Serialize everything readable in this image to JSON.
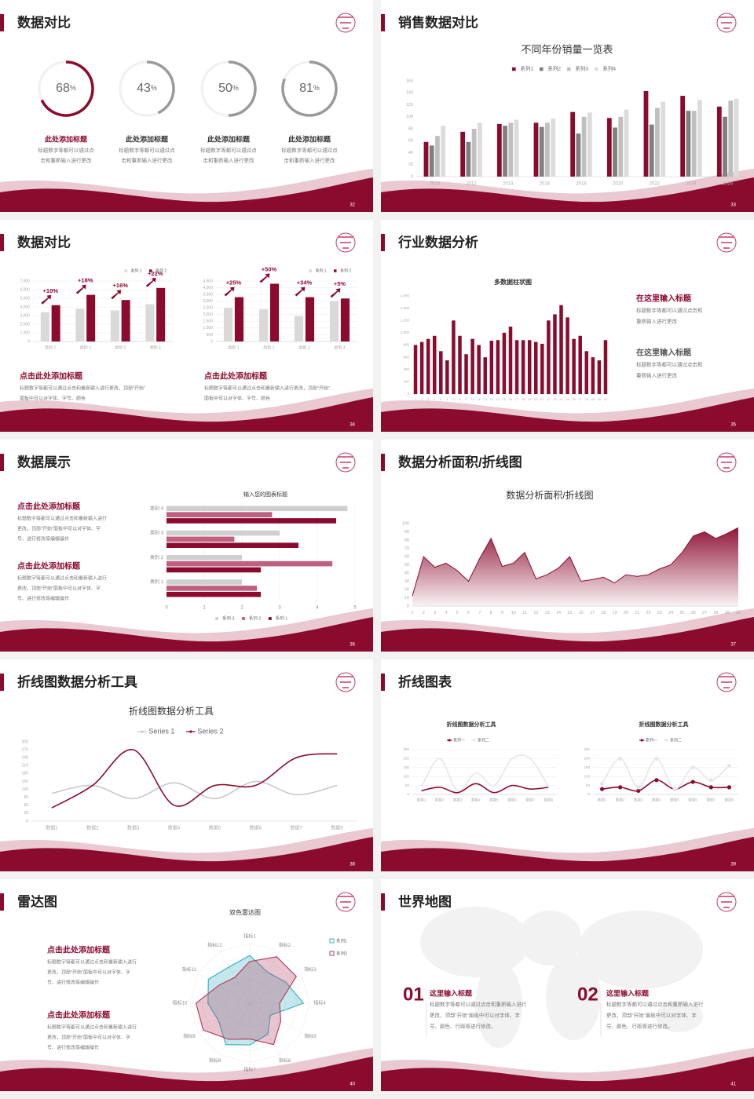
{
  "slides": [
    {
      "title": "数据对比",
      "page": 32,
      "charts": [
        {
          "type": "ring",
          "unit": "%",
          "values": [
            68,
            43,
            50,
            81
          ],
          "colors": [
            "#8b0b2e",
            "#9a9a9a",
            "#9a9a9a",
            "#9a9a9a"
          ]
        }
      ],
      "blocks": [
        {
          "heading": "此处添加标题",
          "lines": [
            "标题数字等都可以通过点",
            "击和重新输入进行更改"
          ]
        },
        {
          "heading": "此处添加标题",
          "lines": [
            "标题数字等都可以通过点",
            "击和重新输入进行更改"
          ]
        },
        {
          "heading": "此处添加标题",
          "lines": [
            "标题数字等都可以通过点",
            "击和重新输入进行更改"
          ]
        },
        {
          "heading": "此处添加标题",
          "lines": [
            "标题数字等都可以通过点",
            "击和重新输入进行更改"
          ]
        }
      ]
    },
    {
      "title": "销售数据对比",
      "page": 33,
      "charts": [
        {
          "type": "bar",
          "title": "不同年份销量一览表",
          "grid": false,
          "categories": [
            "2010",
            "2012",
            "2014",
            "2016",
            "2018",
            "2020",
            "2022",
            "2024",
            "2026"
          ],
          "series": [
            {
              "name": "系列1",
              "color": "#8b0b2e",
              "values": [
                58,
                75,
                88,
                90,
                108,
                98,
                143,
                135,
                117
              ]
            },
            {
              "name": "系列2",
              "color": "#7f7f7f",
              "values": [
                52,
                58,
                85,
                83,
                72,
                82,
                87,
                110,
                100
              ]
            },
            {
              "name": "系列3",
              "color": "#bfbfbf",
              "values": [
                68,
                80,
                90,
                90,
                100,
                100,
                115,
                110,
                127
              ]
            },
            {
              "name": "系列4",
              "color": "#dcdcdc",
              "values": [
                85,
                90,
                95,
                97,
                107,
                112,
                125,
                128,
                130
              ]
            }
          ],
          "ylim": [
            0,
            160
          ],
          "yticks": [
            0,
            20,
            40,
            60,
            80,
            100,
            120,
            140,
            160
          ]
        }
      ]
    },
    {
      "title": "数据对比",
      "page": 34,
      "charts": [
        {
          "type": "bar",
          "grid": true,
          "categories": [
            "类别 1",
            "类别 2",
            "类别 3",
            "类别 4"
          ],
          "series": [
            {
              "name": "系列 1",
              "color": "#d9d9d9",
              "values": [
                3400,
                3800,
                3600,
                4300
              ]
            },
            {
              "name": "系列 2",
              "color": "#8b0b2e",
              "values": [
                4200,
                5400,
                4800,
                6200
              ]
            }
          ],
          "annotations": [
            "+10%",
            "+18%",
            "+16%",
            "+22%"
          ],
          "ylim": [
            0,
            7000
          ],
          "yticks": [
            0,
            {
              "value": 1000,
              "label": "1,000"
            },
            {
              "value": 2000,
              "label": "2,000"
            },
            {
              "value": 3000,
              "label": "3,000"
            },
            {
              "value": 4000,
              "label": "4,000"
            },
            {
              "value": 5000,
              "label": "5,000"
            },
            {
              "value": 6000,
              "label": "6,000"
            },
            {
              "value": 7000,
              "label": "7,000"
            }
          ]
        },
        {
          "type": "bar",
          "grid": true,
          "categories": [
            "类别 1",
            "类别 2",
            "类别 3",
            "类别 4"
          ],
          "series": [
            {
              "name": "系列 1",
              "color": "#d9d9d9",
              "values": [
                2500,
                2400,
                1900,
                3000
              ]
            },
            {
              "name": "系列 2",
              "color": "#8b0b2e",
              "values": [
                3300,
                4300,
                3300,
                3200
              ]
            }
          ],
          "annotations": [
            "+25%",
            "+50%",
            "+34%",
            "+5%"
          ],
          "ylim": [
            0,
            4500
          ],
          "yticks": [
            0,
            500,
            {
              "value": 1000,
              "label": "1,000"
            },
            {
              "value": 1500,
              "label": "1,500"
            },
            {
              "value": 2000,
              "label": "2,000"
            },
            {
              "value": 2500,
              "label": "2,500"
            },
            {
              "value": 3000,
              "label": "3,000"
            },
            {
              "value": 3500,
              "label": "3,500"
            },
            {
              "value": 4000,
              "label": "4,000"
            },
            {
              "value": 4500,
              "label": "4,500"
            }
          ]
        }
      ],
      "blocks": [
        {
          "heading": "点击此处添加标题",
          "lines": [
            "标题数字等都可以通过点击和重新输入进行更改，顶部“开始”",
            "面板中可以对字体、字号、颜色"
          ]
        },
        {
          "heading": "点击此处添加标题",
          "lines": [
            "标题数字等都可以通过点击和重新输入进行更改，顶部“开始”",
            "面板中可以对字体、字号、颜色"
          ]
        }
      ]
    },
    {
      "title": "行业数据分析",
      "page": 35,
      "charts": [
        {
          "type": "bar",
          "title": "多数据柱状图",
          "grid": false,
          "color": "#8b0b2e",
          "categories": [
            "1",
            "2",
            "3",
            "4",
            "5",
            "6",
            "7",
            "8",
            "9",
            "10",
            "11",
            "12",
            "13",
            "14",
            "15",
            "16",
            "17",
            "18",
            "19",
            "20",
            "21",
            "22",
            "23",
            "24",
            "25",
            "26",
            "27",
            "28",
            "29",
            "30",
            "31"
          ],
          "values": [
            800,
            850,
            900,
            950,
            700,
            550,
            1200,
            950,
            650,
            900,
            800,
            600,
            870,
            880,
            1000,
            1100,
            880,
            880,
            880,
            850,
            820,
            1200,
            1300,
            1450,
            1250,
            900,
            950,
            700,
            600,
            550,
            880
          ],
          "ylim": [
            0,
            1600
          ],
          "yticks": [
            0,
            200,
            400,
            600,
            800,
            {
              "value": 1000,
              "label": "1,000"
            },
            {
              "value": 1200,
              "label": "1,200"
            },
            {
              "value": 1400,
              "label": "1,400"
            },
            {
              "value": 1600,
              "label": "1,600"
            }
          ]
        }
      ],
      "blocks": [
        {
          "heading": "在这里输入标题",
          "lines": [
            "标题数字等都可以通过点击和",
            "重新输入进行更改"
          ]
        },
        {
          "heading": "在这里输入标题",
          "lines": [
            "标题数字等都可以通过点击和",
            "重新输入进行更改"
          ]
        }
      ]
    },
    {
      "title": "数据展示",
      "page": 36,
      "charts": [
        {
          "type": "hbar",
          "title": "输入您的图表标题",
          "grid": true,
          "categories": [
            "类别 1",
            "类别 2",
            "类别 3",
            "类别 4"
          ],
          "series": [
            {
              "name": "系列 1",
              "color": "#8b0b2e",
              "values": [
                2.5,
                2.5,
                3.5,
                4.5
              ]
            },
            {
              "name": "系列 2",
              "color": "#c06080",
              "values": [
                2.4,
                4.4,
                1.8,
                2.8
              ]
            },
            {
              "name": "系列 3",
              "color": "#cfcfcf",
              "values": [
                2.0,
                2.0,
                3.0,
                4.8
              ]
            }
          ],
          "xlim": [
            0,
            5
          ],
          "xticks": [
            0,
            1,
            2,
            3,
            4,
            5
          ]
        }
      ],
      "blocks": [
        {
          "heading": "点击此处添加标题",
          "lines": [
            "标题数字等都可以通过点击和重新输入进行",
            "更改，顶部“开始”面板中可以对字体、字",
            "号、进行修改等编辑操作"
          ]
        },
        {
          "heading": "点击此处添加标题",
          "lines": [
            "标题数字等都可以通过点击和重新输入进行",
            "更改，顶部“开始”面板中可以对字体、字",
            "号、进行修改等编辑操作"
          ]
        }
      ]
    },
    {
      "title": "数据分析面积/折线图",
      "page": 37,
      "charts": [
        {
          "type": "area",
          "title": "数据分析面积/折线图",
          "grid": false,
          "color": "#8b0b2e",
          "categories": [
            "1",
            "2",
            "3",
            "4",
            "5",
            "6",
            "7",
            "8",
            "9",
            "10",
            "11",
            "12",
            "13",
            "14",
            "15",
            "16",
            "17",
            "18",
            "19",
            "20",
            "21",
            "22",
            "23",
            "24",
            "25",
            "26",
            "27",
            "28",
            "29",
            "30"
          ],
          "values": [
            12,
            60,
            47,
            52,
            43,
            30,
            58,
            82,
            48,
            52,
            65,
            33,
            38,
            46,
            60,
            30,
            32,
            35,
            28,
            38,
            36,
            38,
            45,
            50,
            65,
            85,
            90,
            82,
            88,
            95
          ],
          "ylim": [
            0,
            100
          ],
          "yticks": [
            0,
            10,
            20,
            30,
            40,
            50,
            60,
            70,
            80,
            90,
            100
          ]
        }
      ]
    },
    {
      "title": "折线图数据分析工具",
      "page": 38,
      "charts": [
        {
          "type": "line",
          "title": "折线图数据分析工具",
          "grid": false,
          "smooth": true,
          "categories": [
            "数据1",
            "数据2",
            "数据3",
            "数据4",
            "数据5",
            "数据6",
            "数据7",
            "数据8"
          ],
          "series": [
            {
              "name": "Series 1",
              "color": "#c8c8c8",
              "values": [
                105,
                135,
                85,
                145,
                85,
                150,
                100,
                135
              ]
            },
            {
              "name": "Series 2",
              "color": "#8b0b2e",
              "values": [
                50,
                135,
                270,
                60,
                135,
                135,
                240,
                255
              ]
            }
          ],
          "ylim": [
            0,
            300
          ],
          "yticks": [
            0,
            30,
            60,
            90,
            120,
            150,
            180,
            210,
            240,
            270,
            300
          ]
        }
      ]
    },
    {
      "title": "折线图表",
      "page": 39,
      "charts": [
        {
          "type": "line",
          "title": "折线图数据分析工具",
          "grid": true,
          "smooth": true,
          "categories": [
            "数据1",
            "数据2",
            "数据3",
            "数据4",
            "数据5",
            "数据6",
            "数据7",
            "数据8"
          ],
          "series": [
            {
              "name": "系列一",
              "color": "#8b0b2e",
              "values": [
                20,
                40,
                10,
                60,
                10,
                50,
                30,
                40
              ]
            },
            {
              "name": "系列二",
              "color": "#e6e6e6",
              "values": [
                40,
                200,
                20,
                120,
                50,
                200,
                200,
                40
              ]
            }
          ],
          "ylim": [
            0,
            250
          ],
          "yticks": [
            0,
            50,
            100,
            150,
            200,
            250
          ]
        },
        {
          "type": "line",
          "title": "折线图数据分析工具",
          "grid": true,
          "smooth": true,
          "markers": true,
          "categories": [
            "数据1",
            "数据2",
            "数据3",
            "数据4",
            "数据5",
            "数据6",
            "数据7",
            "数据8"
          ],
          "series": [
            {
              "name": "系列一",
              "color": "#8b0b2e",
              "values": [
                30,
                40,
                20,
                80,
                30,
                70,
                40,
                40
              ]
            },
            {
              "name": "系列二",
              "color": "#e6e6e6",
              "values": [
                60,
                200,
                40,
                200,
                30,
                150,
                80,
                160
              ]
            }
          ],
          "ylim": [
            0,
            250
          ],
          "yticks": [
            0,
            50,
            100,
            150,
            200,
            250
          ]
        }
      ]
    },
    {
      "title": "雷达图",
      "page": 40,
      "charts": [
        {
          "type": "radar",
          "title": "双色雷达图",
          "max": 100,
          "categories": [
            "指标1",
            "指标2",
            "指标3",
            "指标4",
            "指标5",
            "指标6",
            "指标7",
            "指标8",
            "指标9",
            "指标10",
            "指标11",
            "指标12"
          ],
          "series": [
            {
              "name": "系列1",
              "color": "#3bb3c3",
              "values": [
                80,
                60,
                70,
                90,
                40,
                60,
                70,
                80,
                60,
                70,
                80,
                70
              ]
            },
            {
              "name": "系列2",
              "color": "#b3405f",
              "values": [
                70,
                90,
                90,
                50,
                60,
                80,
                60,
                70,
                90,
                90,
                60,
                50
              ]
            }
          ]
        }
      ],
      "blocks": [
        {
          "heading": "点击此处添加标题",
          "lines": [
            "标题数字等都可以通过点击和重新输入进行",
            "更改，顶部“开始”面板中可以对字体、字",
            "号、进行修改等编辑操作"
          ]
        },
        {
          "heading": "点击此处添加标题",
          "lines": [
            "标题数字等都可以通过点击和重新输入进行",
            "更改，顶部“开始”面板中可以对字体、字",
            "号、进行修改等编辑操作"
          ]
        }
      ]
    },
    {
      "title": "世界地图",
      "page": 41,
      "charts": [],
      "blocks": [
        {
          "number": "01",
          "heading": "这里输入标题",
          "lines": [
            "标题数字等都可以通过点击和重新输入进行",
            "更改，顶部“开始”面板中可以对字体、字",
            "号、颜色、行距等进行修改。"
          ]
        },
        {
          "number": "02",
          "heading": "这里输入标题",
          "lines": [
            "标题数字等都可以通过点击和重新输入进行",
            "更改，顶部“开始”面板中可以对字体、字",
            "号、颜色、行距等进行修改。"
          ]
        }
      ]
    }
  ]
}
